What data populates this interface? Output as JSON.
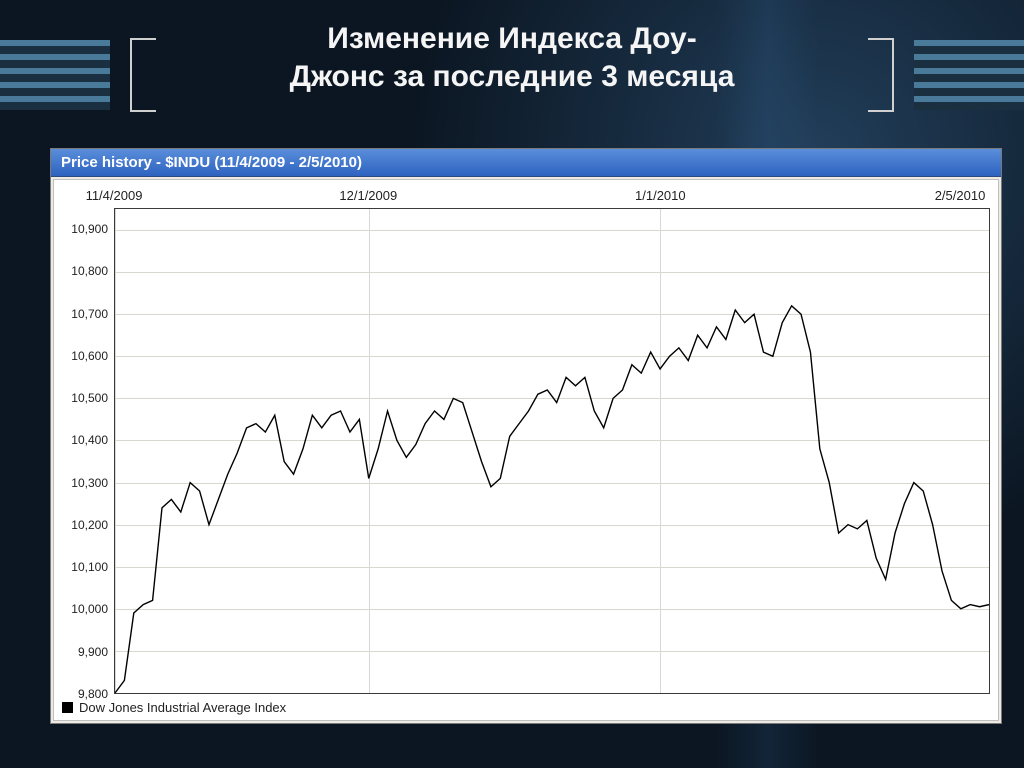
{
  "slide": {
    "title": "Изменение Индекса Доу-Джонс за последние 3 месяца",
    "title_color": "#f5f5f5",
    "title_fontsize": 30,
    "bg_color": "#0b1622",
    "stripe_colors": [
      "#4a7a9a",
      "#1a3040"
    ],
    "bracket_color": "#d0d0d0"
  },
  "chart": {
    "type": "line",
    "header_text": "Price history - $INDU (11/4/2009 - 2/5/2010)",
    "header_bg_from": "#5a8edb",
    "header_bg_to": "#2d62c0",
    "header_text_color": "#ffffff",
    "plot_bg": "#ffffff",
    "window_bg": "#eceae3",
    "grid_color": "#d8d8d0",
    "border_color": "#3a3a3a",
    "line_color": "#000000",
    "line_width": 1.4,
    "x": {
      "min": 0,
      "max": 93,
      "ticks": [
        {
          "pos": 0,
          "label": "11/4/2009"
        },
        {
          "pos": 27,
          "label": "12/1/2009"
        },
        {
          "pos": 58,
          "label": "1/1/2010"
        },
        {
          "pos": 93,
          "label": "2/5/2010"
        }
      ],
      "label_fontsize": 13
    },
    "y": {
      "min": 9800,
      "max": 10950,
      "ticks": [
        9800,
        9900,
        10000,
        10100,
        10200,
        10300,
        10400,
        10500,
        10600,
        10700,
        10800,
        10900
      ],
      "tick_labels": [
        "9,800",
        "9,900",
        "10,000",
        "10,100",
        "10,200",
        "10,300",
        "10,400",
        "10,500",
        "10,600",
        "10,700",
        "10,800",
        "10,900"
      ],
      "label_fontsize": 12
    },
    "series": [
      {
        "name": "Dow Jones Industrial Average Index",
        "color": "#000000",
        "points": [
          [
            0,
            9800
          ],
          [
            1,
            9830
          ],
          [
            2,
            9990
          ],
          [
            3,
            10010
          ],
          [
            4,
            10020
          ],
          [
            5,
            10240
          ],
          [
            6,
            10260
          ],
          [
            7,
            10230
          ],
          [
            8,
            10300
          ],
          [
            9,
            10280
          ],
          [
            10,
            10200
          ],
          [
            11,
            10260
          ],
          [
            12,
            10320
          ],
          [
            13,
            10370
          ],
          [
            14,
            10430
          ],
          [
            15,
            10440
          ],
          [
            16,
            10420
          ],
          [
            17,
            10460
          ],
          [
            18,
            10350
          ],
          [
            19,
            10320
          ],
          [
            20,
            10380
          ],
          [
            21,
            10460
          ],
          [
            22,
            10430
          ],
          [
            23,
            10460
          ],
          [
            24,
            10470
          ],
          [
            25,
            10420
          ],
          [
            26,
            10450
          ],
          [
            27,
            10310
          ],
          [
            28,
            10380
          ],
          [
            29,
            10470
          ],
          [
            30,
            10400
          ],
          [
            31,
            10360
          ],
          [
            32,
            10390
          ],
          [
            33,
            10440
          ],
          [
            34,
            10470
          ],
          [
            35,
            10450
          ],
          [
            36,
            10500
          ],
          [
            37,
            10490
          ],
          [
            38,
            10420
          ],
          [
            39,
            10350
          ],
          [
            40,
            10290
          ],
          [
            41,
            10310
          ],
          [
            42,
            10410
          ],
          [
            43,
            10440
          ],
          [
            44,
            10470
          ],
          [
            45,
            10510
          ],
          [
            46,
            10520
          ],
          [
            47,
            10490
          ],
          [
            48,
            10550
          ],
          [
            49,
            10530
          ],
          [
            50,
            10550
          ],
          [
            51,
            10470
          ],
          [
            52,
            10430
          ],
          [
            53,
            10500
          ],
          [
            54,
            10520
          ],
          [
            55,
            10580
          ],
          [
            56,
            10560
          ],
          [
            57,
            10610
          ],
          [
            58,
            10570
          ],
          [
            59,
            10600
          ],
          [
            60,
            10620
          ],
          [
            61,
            10590
          ],
          [
            62,
            10650
          ],
          [
            63,
            10620
          ],
          [
            64,
            10670
          ],
          [
            65,
            10640
          ],
          [
            66,
            10710
          ],
          [
            67,
            10680
          ],
          [
            68,
            10700
          ],
          [
            69,
            10610
          ],
          [
            70,
            10600
          ],
          [
            71,
            10680
          ],
          [
            72,
            10720
          ],
          [
            73,
            10700
          ],
          [
            74,
            10610
          ],
          [
            75,
            10380
          ],
          [
            76,
            10300
          ],
          [
            77,
            10180
          ],
          [
            78,
            10200
          ],
          [
            79,
            10190
          ],
          [
            80,
            10210
          ],
          [
            81,
            10120
          ],
          [
            82,
            10070
          ],
          [
            83,
            10180
          ],
          [
            84,
            10250
          ],
          [
            85,
            10300
          ],
          [
            86,
            10280
          ],
          [
            87,
            10200
          ],
          [
            88,
            10090
          ],
          [
            89,
            10020
          ],
          [
            90,
            10000
          ],
          [
            91,
            10010
          ],
          [
            92,
            10005
          ],
          [
            93,
            10010
          ]
        ]
      }
    ],
    "legend": {
      "swatch_color": "#000000",
      "label": "Dow Jones Industrial Average Index",
      "fontsize": 13
    }
  }
}
